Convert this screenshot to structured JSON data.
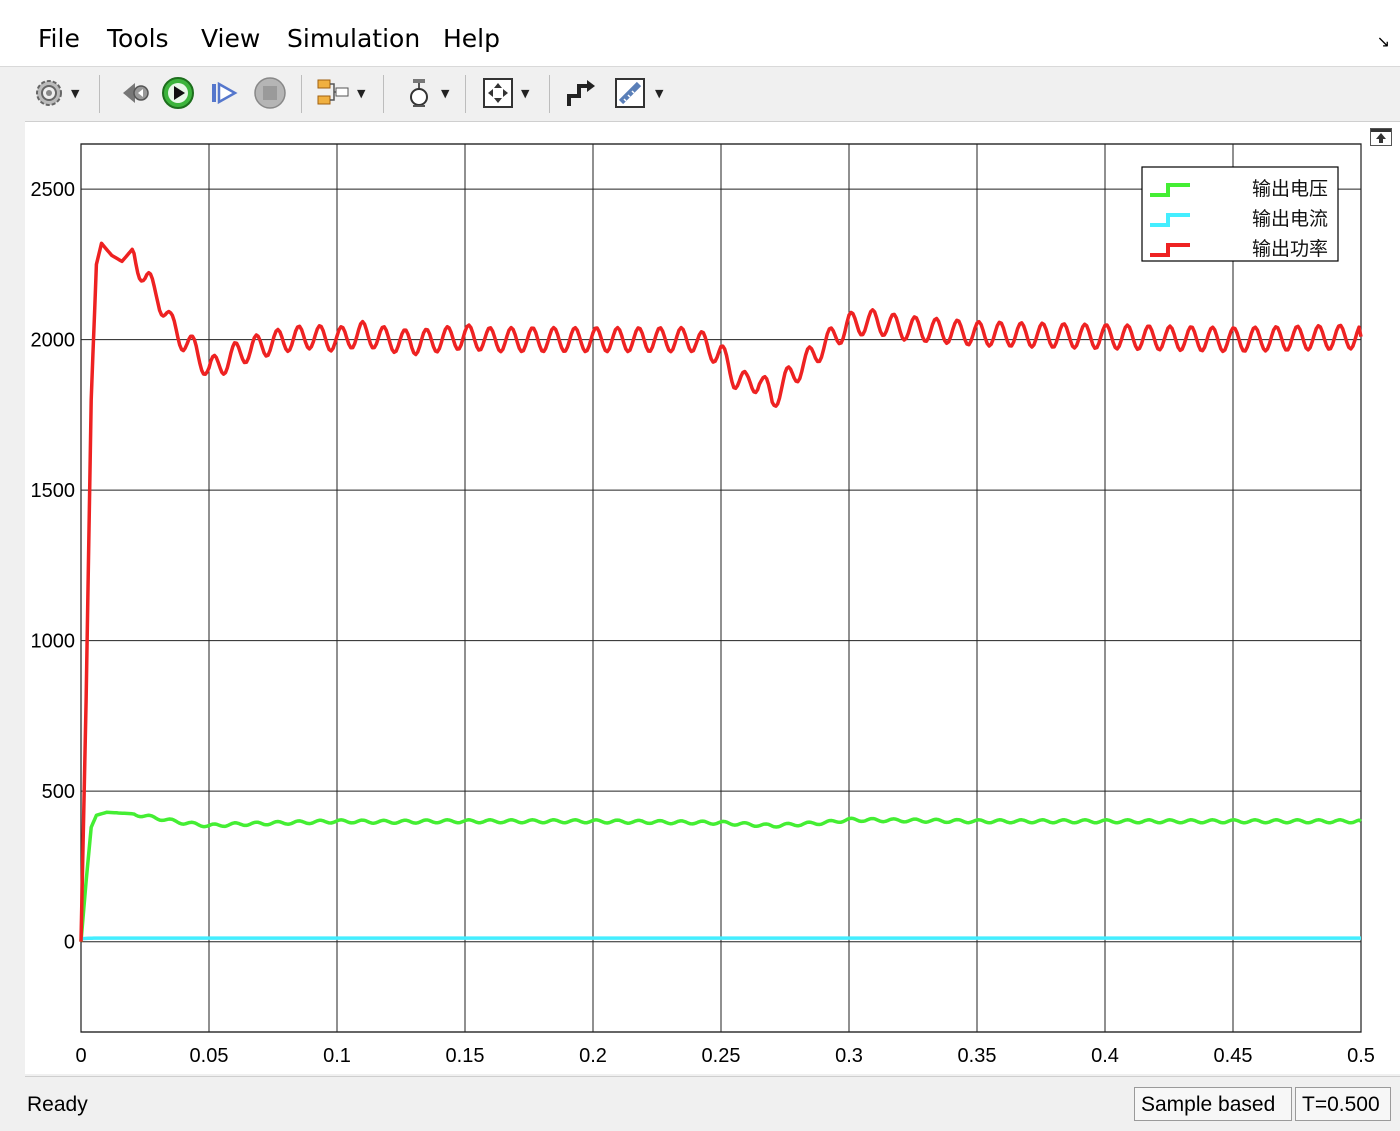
{
  "menu": [
    "File",
    "Tools",
    "View",
    "Simulation",
    "Help"
  ],
  "toolbar": {
    "icons": [
      "gear-icon",
      "step-back-icon",
      "run-icon",
      "step-forward-icon",
      "stop-icon",
      "signal-select-icon",
      "zoom-icon",
      "fit-icon",
      "style-icon",
      "measure-icon"
    ]
  },
  "status": {
    "text": "Ready",
    "mode": "Sample based",
    "time": "T=0.500"
  },
  "colors": {
    "voltage": "#44ee33",
    "current": "#44eeff",
    "power": "#ee2222"
  },
  "chart_data": {
    "type": "line",
    "title": "",
    "xlabel": "",
    "ylabel": "",
    "xlim": [
      0,
      0.5
    ],
    "ylim": [
      -300,
      2650
    ],
    "xticks": [
      "0",
      "0.05",
      "0.1",
      "0.15",
      "0.2",
      "0.25",
      "0.3",
      "0.35",
      "0.4",
      "0.45",
      "0.5"
    ],
    "yticks": [
      "0",
      "500",
      "1000",
      "1500",
      "2000",
      "2500"
    ],
    "grid": true,
    "legend": "top-right",
    "series": [
      {
        "name": "输出电压",
        "color": "#44ee33",
        "x": [
          0,
          0.002,
          0.004,
          0.006,
          0.01,
          0.02,
          0.03,
          0.04,
          0.05,
          0.06,
          0.08,
          0.1,
          0.12,
          0.14,
          0.16,
          0.2,
          0.25,
          0.27,
          0.29,
          0.3,
          0.35,
          0.4,
          0.45,
          0.5
        ],
        "y": [
          0,
          200,
          380,
          420,
          430,
          425,
          410,
          395,
          385,
          390,
          395,
          400,
          398,
          400,
          400,
          400,
          395,
          385,
          395,
          405,
          400,
          400,
          400,
          400
        ]
      },
      {
        "name": "输出电流",
        "color": "#44eeff",
        "x": [
          0,
          0.005,
          0.1,
          0.2,
          0.25,
          0.3,
          0.4,
          0.5
        ],
        "y": [
          10,
          12,
          12,
          12,
          12,
          12,
          12,
          12
        ]
      },
      {
        "name": "输出功率",
        "color": "#ee2222",
        "x": [
          0,
          0.002,
          0.004,
          0.006,
          0.008,
          0.012,
          0.016,
          0.02,
          0.025,
          0.03,
          0.035,
          0.04,
          0.045,
          0.05,
          0.055,
          0.06,
          0.07,
          0.08,
          0.09,
          0.1,
          0.11,
          0.12,
          0.13,
          0.14,
          0.15,
          0.16,
          0.18,
          0.2,
          0.22,
          0.24,
          0.25,
          0.255,
          0.26,
          0.265,
          0.27,
          0.275,
          0.28,
          0.29,
          0.3,
          0.31,
          0.32,
          0.35,
          0.4,
          0.45,
          0.5
        ],
        "y": [
          0,
          800,
          1800,
          2250,
          2320,
          2280,
          2260,
          2300,
          2200,
          2150,
          2050,
          2000,
          1960,
          1900,
          1920,
          1950,
          1980,
          2000,
          2010,
          2000,
          2020,
          2000,
          1990,
          2000,
          2010,
          2000,
          2000,
          2000,
          2000,
          2000,
          1950,
          1880,
          1850,
          1870,
          1800,
          1860,
          1900,
          1980,
          2050,
          2060,
          2040,
          2020,
          2010,
          2000,
          2010
        ]
      }
    ]
  }
}
